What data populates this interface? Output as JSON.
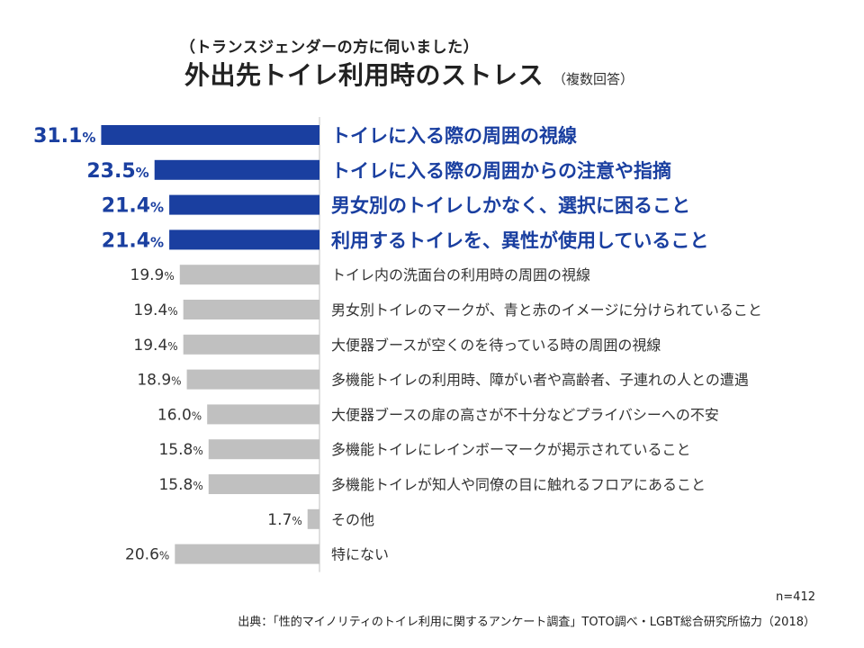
{
  "header": {
    "subtitle": "（トランスジェンダーの方に伺いました）",
    "title": "外出先トイレ利用時のストレス",
    "note": "（複数回答）"
  },
  "colors": {
    "highlight": "#1a3fa0",
    "normal": "#c0c0c0",
    "axis": "#bfbfbf",
    "highlight_text": "#1a3fa0",
    "normal_text": "#333333"
  },
  "chart_data": {
    "type": "bar",
    "orientation": "horizontal",
    "unit": "%",
    "categories": [
      "トイレに入る際の周囲の視線",
      "トイレに入る際の周囲からの注意や指摘",
      "男女別のトイレしかなく、選択に困ること",
      "利用するトイレを、異性が使用していること",
      "トイレ内の洗面台の利用時の周囲の視線",
      "男女別トイレのマークが、青と赤のイメージに分けられていること",
      "大便器ブースが空くのを待っている時の周囲の視線",
      "多機能トイレの利用時、障がい者や高齢者、子連れの人との遭遇",
      "大便器ブースの扉の高さが不十分などプライバシーへの不安",
      "多機能トイレにレインボーマークが掲示されていること",
      "多機能トイレが知人や同僚の目に触れるフロアにあること",
      "その他",
      "特にない"
    ],
    "values": [
      31.1,
      23.5,
      21.4,
      21.4,
      19.9,
      19.4,
      19.4,
      18.9,
      16.0,
      15.8,
      15.8,
      1.7,
      20.6
    ],
    "value_labels": [
      "31.1",
      "23.5",
      "21.4",
      "21.4",
      "19.9",
      "19.4",
      "19.4",
      "18.9",
      "16.0",
      "15.8",
      "15.8",
      "1.7",
      "20.6"
    ],
    "highlighted": [
      true,
      true,
      true,
      true,
      false,
      false,
      false,
      false,
      false,
      false,
      false,
      false,
      false
    ]
  },
  "footer": {
    "n": "n=412",
    "source": "出典：「性的マイノリティのトイレ利用に関するアンケート調査」TOTO調べ・LGBT総合研究所協力（2018）"
  }
}
